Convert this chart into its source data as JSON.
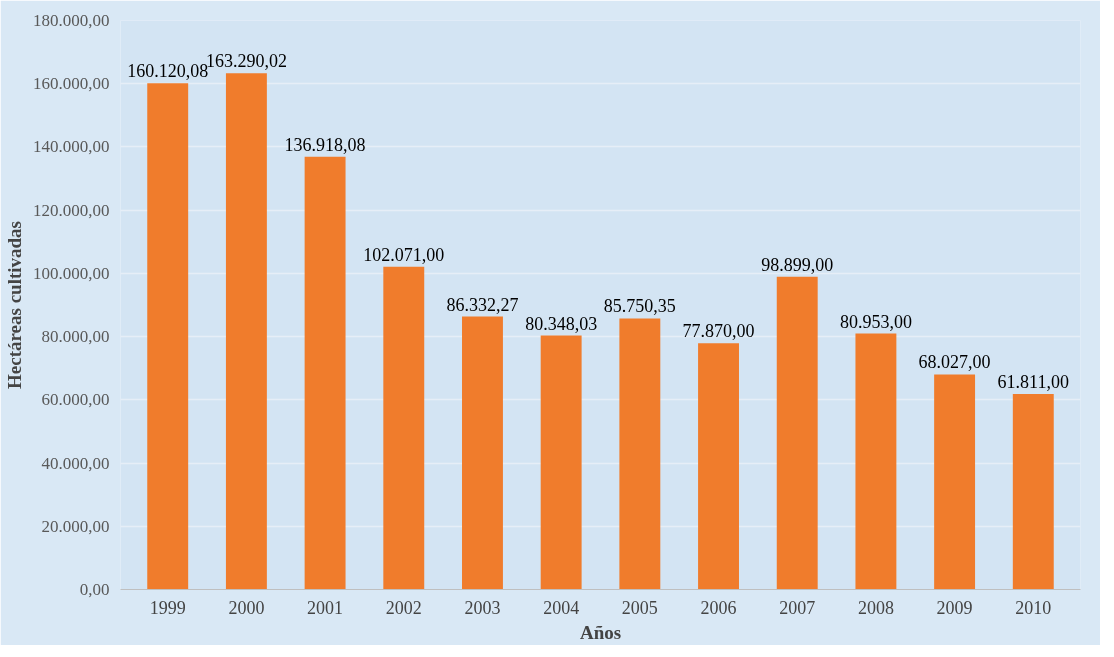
{
  "chart_data": {
    "type": "bar",
    "xlabel": "Años",
    "ylabel": "Hectáreas cultivadas",
    "categories": [
      "1999",
      "2000",
      "2001",
      "2002",
      "2003",
      "2004",
      "2005",
      "2006",
      "2007",
      "2008",
      "2009",
      "2010"
    ],
    "values": [
      160120.08,
      163290.02,
      136918.08,
      102071.0,
      86332.27,
      80348.03,
      85750.35,
      77870.0,
      98899.0,
      80953.0,
      68027.0,
      61811.0
    ],
    "value_labels": [
      "160.120,08",
      "163.290,02",
      "136.918,08",
      "102.071,00",
      "86.332,27",
      "80.348,03",
      "85.750,35",
      "77.870,00",
      "98.899,00",
      "80.953,00",
      "68.027,00",
      "61.811,00"
    ],
    "color": "#f07c2c",
    "ylim": [
      0,
      180000
    ],
    "yticks": [
      {
        "value": 0,
        "label": "0,00"
      },
      {
        "value": 20000,
        "label": "20.000,00"
      },
      {
        "value": 40000,
        "label": "40.000,00"
      },
      {
        "value": 60000,
        "label": "60.000,00"
      },
      {
        "value": 80000,
        "label": "80.000,00"
      },
      {
        "value": 100000,
        "label": "100.000,00"
      },
      {
        "value": 120000,
        "label": "120.000,00"
      },
      {
        "value": 140000,
        "label": "140.000,00"
      },
      {
        "value": 160000,
        "label": "160.000,00"
      },
      {
        "value": 180000,
        "label": "180.000,00"
      }
    ],
    "grid": "y"
  }
}
